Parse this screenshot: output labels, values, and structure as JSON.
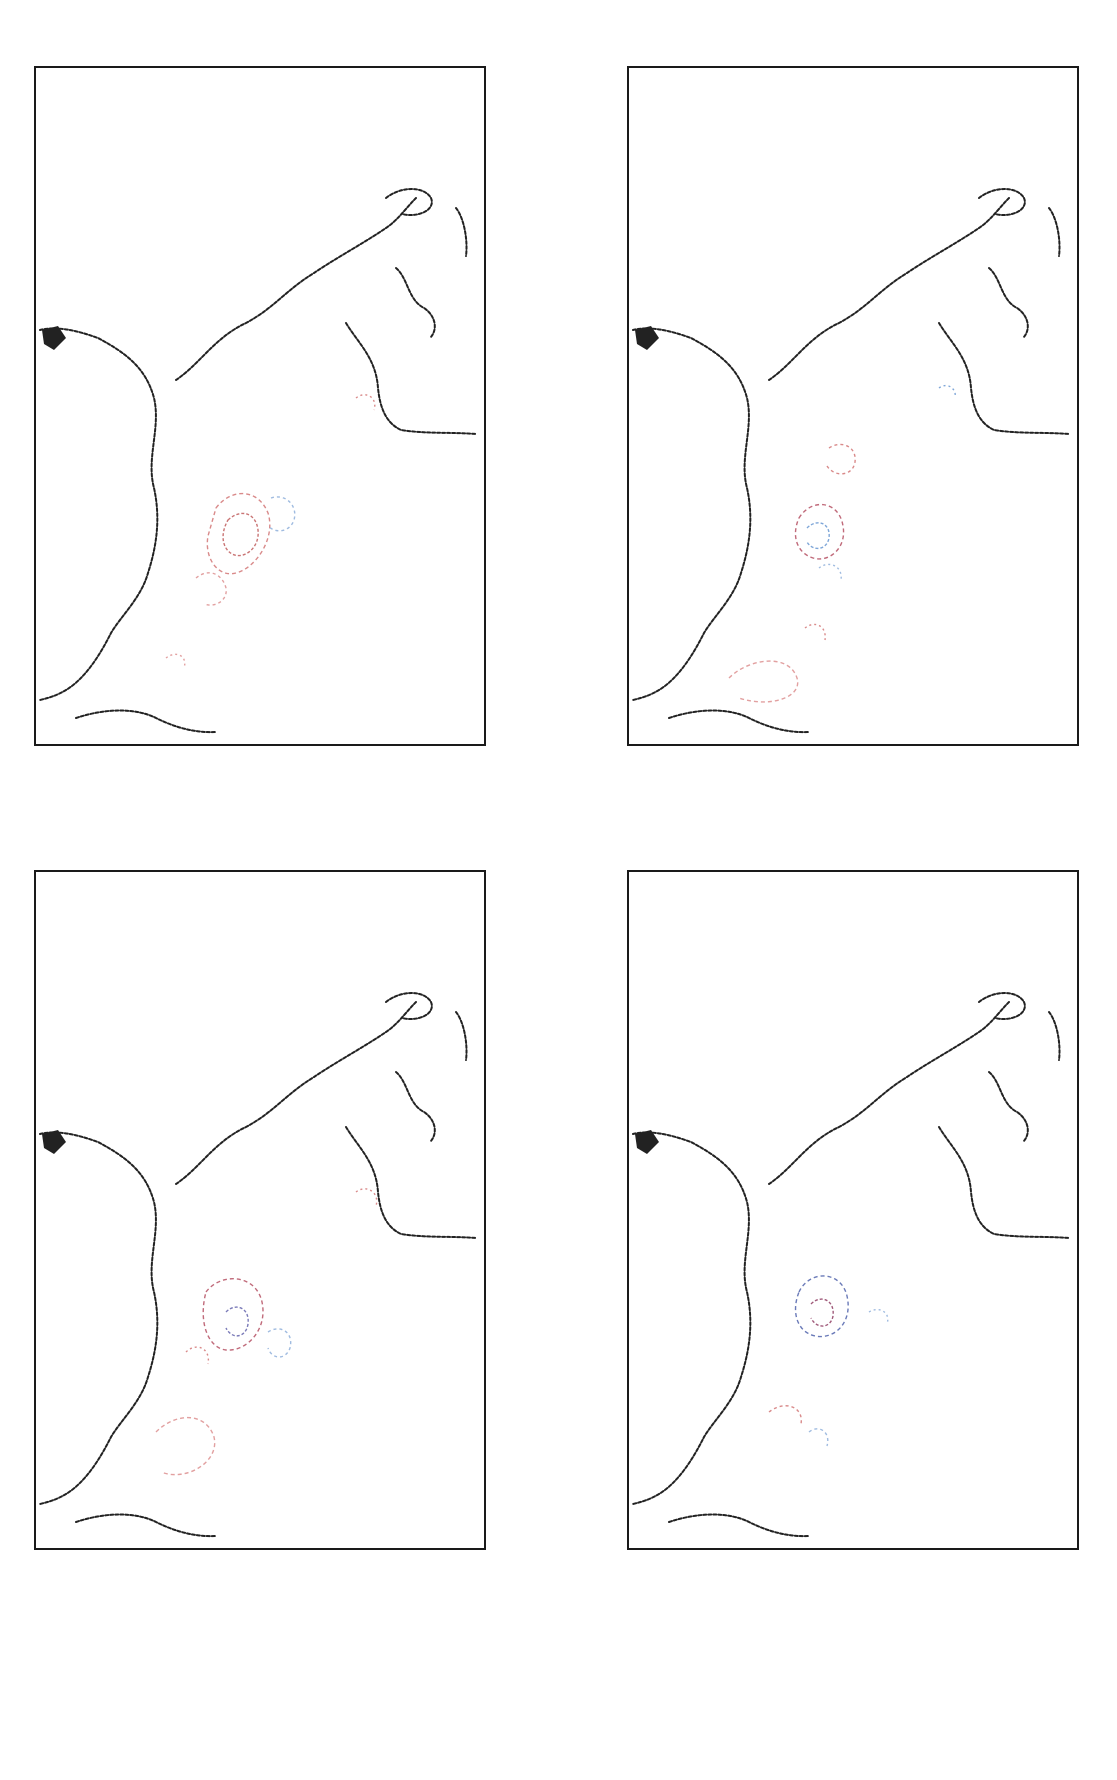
{
  "panels": [
    {
      "title_line1": "",
      "title_line2": "",
      "corner_label": "",
      "x_ticks": [
        "",
        "",
        "",
        "",
        "",
        "",
        "",
        ""
      ],
      "y_ticks": [
        "",
        "",
        "",
        "",
        "",
        "",
        ""
      ],
      "colors": {
        "frame": "#1a1a1a",
        "coast": "#222222",
        "warm": "#d98a8a",
        "cool": "#7ea6d8"
      }
    },
    {
      "title_line1": "",
      "title_line2": "",
      "corner_label": "",
      "x_ticks": [
        "",
        "",
        "",
        "",
        "",
        "",
        "",
        ""
      ],
      "y_ticks": [
        "",
        "",
        "",
        "",
        "",
        "",
        ""
      ],
      "colors": {
        "frame": "#1a1a1a",
        "coast": "#222222",
        "warm": "#d98a8a",
        "cool": "#7ea6d8"
      }
    },
    {
      "title_line1": "",
      "title_line2": "",
      "corner_label": "",
      "x_ticks": [
        "",
        "",
        "",
        "",
        "",
        "",
        "",
        ""
      ],
      "y_ticks": [
        "",
        "",
        "",
        "",
        "",
        "",
        ""
      ],
      "colors": {
        "frame": "#1a1a1a",
        "coast": "#222222",
        "warm": "#d98a8a",
        "cool": "#7ea6d8"
      }
    },
    {
      "title_line1": "",
      "title_line2": "",
      "corner_label": "",
      "x_ticks": [
        "",
        "",
        "",
        "",
        "",
        "",
        "",
        ""
      ],
      "y_ticks": [
        "",
        "",
        "",
        "",
        "",
        "",
        ""
      ],
      "colors": {
        "frame": "#1a1a1a",
        "coast": "#222222",
        "warm": "#d98a8a",
        "cool": "#7ea6d8"
      }
    }
  ]
}
